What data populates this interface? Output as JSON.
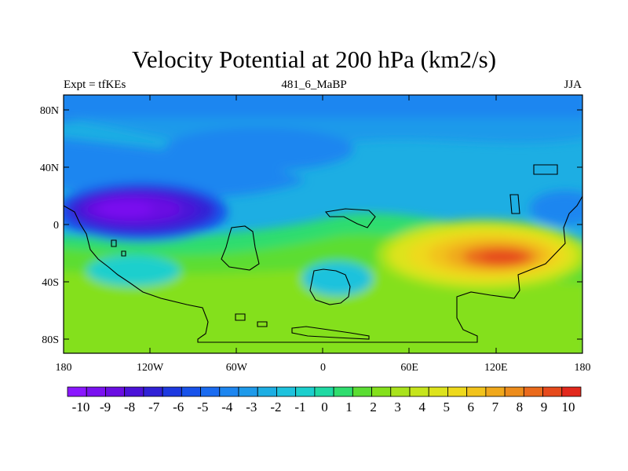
{
  "title": "Velocity Potential at 200 hPa (km2/s)",
  "left_string": "Expt = tfKEs",
  "center_string": "481_6_MaBP",
  "right_string": "JJA",
  "y_tick_labels": [
    "80N",
    "40N",
    "0",
    "40S",
    "80S"
  ],
  "x_tick_labels": [
    "180",
    "120W",
    "60W",
    "0",
    "60E",
    "120E",
    "180"
  ],
  "colorbar": {
    "labels": [
      "-10",
      "-9",
      "-8",
      "-7",
      "-6",
      "-5",
      "-4",
      "-3",
      "-2",
      "-1",
      "0",
      "1",
      "2",
      "3",
      "4",
      "5",
      "6",
      "7",
      "8",
      "9",
      "10"
    ],
    "colors": [
      "#8a17ff",
      "#7a11f0",
      "#6a0ee2",
      "#4b12d8",
      "#3021d6",
      "#1d39e0",
      "#1852ea",
      "#1a6bf0",
      "#1d86f0",
      "#1e9aea",
      "#1daee3",
      "#1ec2dd",
      "#1ccfcd",
      "#1fd9a3",
      "#2fdd6e",
      "#5bdd33",
      "#84e01c",
      "#a9e31c",
      "#c6e51c",
      "#dde31c",
      "#eed91c",
      "#f2c31c",
      "#f0a81c",
      "#ed8c1c",
      "#ea6a1c",
      "#e64a1c",
      "#e2281c"
    ]
  },
  "colors": {
    "background": "#ffffff",
    "coast": "#000000"
  }
}
